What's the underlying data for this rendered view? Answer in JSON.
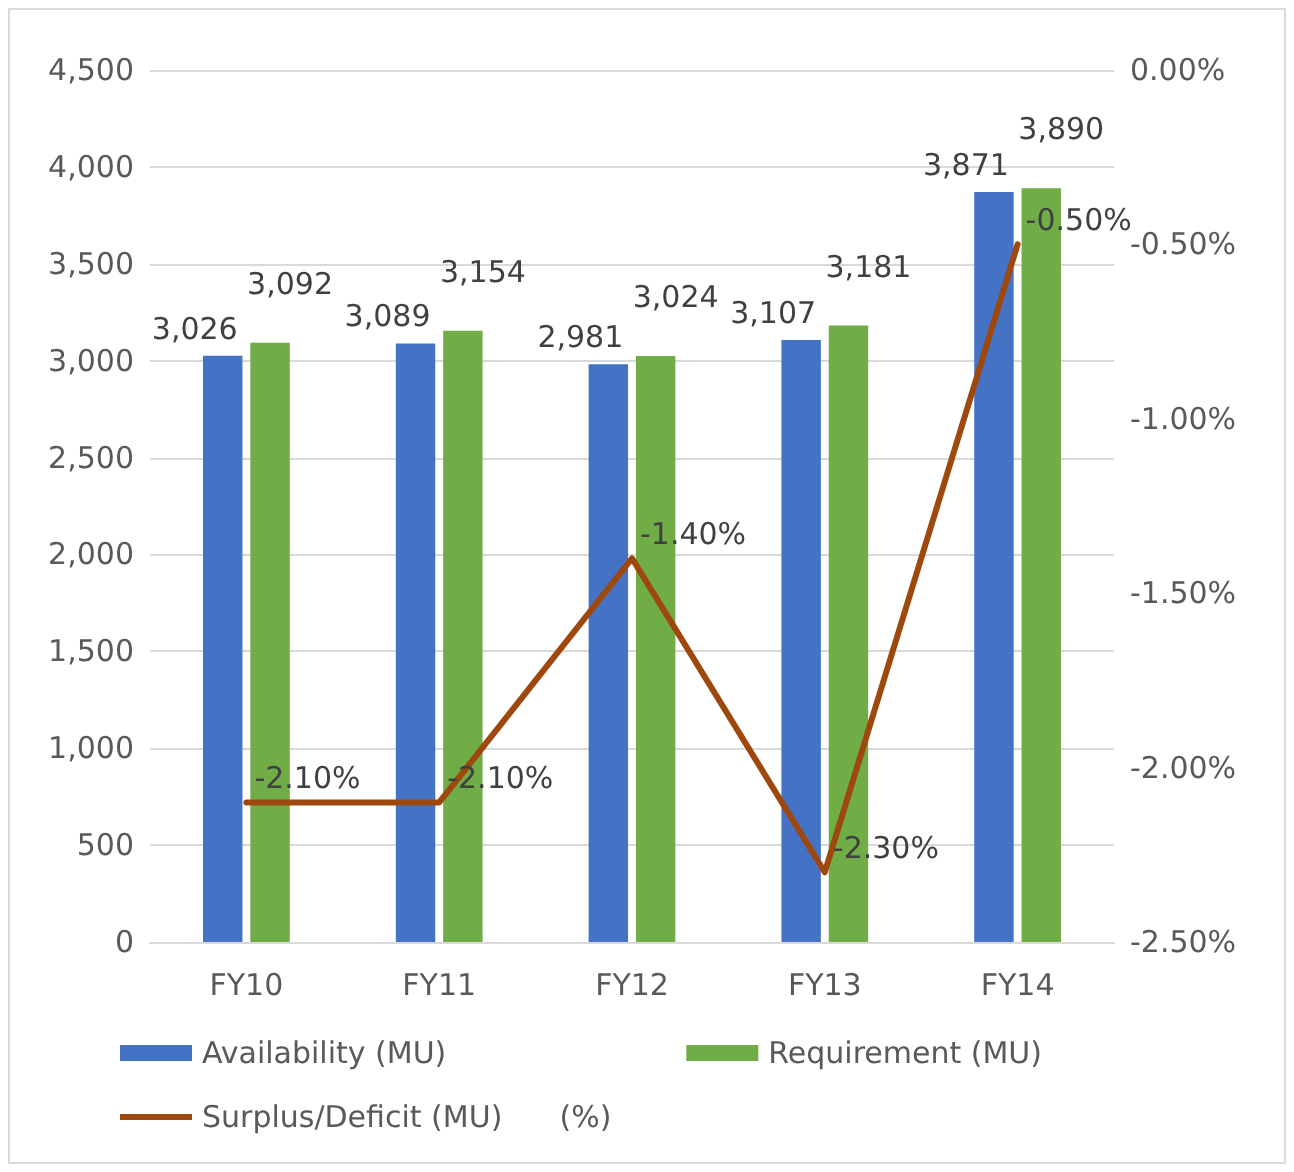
{
  "chart_data": {
    "type": "bar",
    "categories": [
      "FY10",
      "FY11",
      "FY12",
      "FY13",
      "FY14"
    ],
    "series": [
      {
        "name": "Availability (MU)",
        "color": "#4472c4",
        "values": [
          3026,
          3089,
          2981,
          3107,
          3871
        ],
        "value_labels": [
          "3,026",
          "3,089",
          "2,981",
          "3,107",
          "3,871"
        ]
      },
      {
        "name": "Requirement (MU)",
        "color": "#70ad47",
        "values": [
          3092,
          3154,
          3024,
          3181,
          3890
        ],
        "value_labels": [
          "3,092",
          "3,154",
          "3,024",
          "3,181",
          "3,890"
        ]
      },
      {
        "name": "Surplus/Deficit (MU)      (%)",
        "type": "line",
        "axis": "y2",
        "color": "#9e480e",
        "values": [
          -2.1,
          -2.1,
          -1.4,
          -2.3,
          -0.5
        ],
        "value_labels": [
          "-2.10%",
          "-2.10%",
          "-1.40%",
          "-2.30%",
          "-0.50%"
        ]
      }
    ],
    "ylim": [
      0,
      4500
    ],
    "yticks": [
      {
        "value": 0,
        "label": "0"
      },
      {
        "value": 500,
        "label": "500"
      },
      {
        "value": 1000,
        "label": "1,000"
      },
      {
        "value": 1500,
        "label": "1,500"
      },
      {
        "value": 2000,
        "label": "2,000"
      },
      {
        "value": 2500,
        "label": "2,500"
      },
      {
        "value": 3000,
        "label": "3,000"
      },
      {
        "value": 3500,
        "label": "3,500"
      },
      {
        "value": 4000,
        "label": "4,000"
      },
      {
        "value": 4500,
        "label": "4,500"
      }
    ],
    "y2lim": [
      -2.5,
      0
    ],
    "y2ticks": [
      {
        "value": -2.5,
        "label": "-2.50%"
      },
      {
        "value": -2,
        "label": "-2.00%"
      },
      {
        "value": -1.5,
        "label": "-1.50%"
      },
      {
        "value": -1,
        "label": "-1.00%"
      },
      {
        "value": -0.5,
        "label": "-0.50%"
      },
      {
        "value": 0,
        "label": "0.00%"
      }
    ],
    "grid": "y",
    "legend": "bottom",
    "marker": "none",
    "line_style": "solid"
  }
}
